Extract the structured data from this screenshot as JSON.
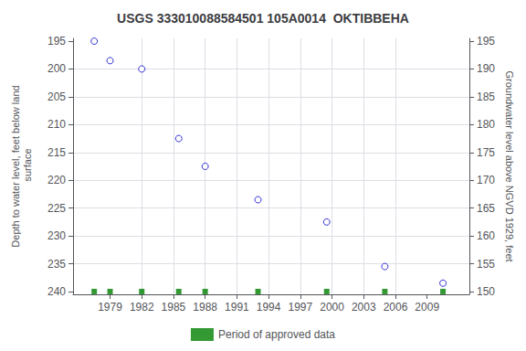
{
  "chart_data": {
    "type": "scatter",
    "title": "USGS 333010088584501 105A0014  OKTIBBEHA",
    "ylabel": "Depth to water level, feet below land\n surface",
    "y2label": "Groundwater level above NGVD 1929, feet",
    "x": [
      1977.5,
      1979.0,
      1982.0,
      1985.5,
      1988.0,
      1993.0,
      1999.5,
      2005.0,
      2010.5
    ],
    "series": [
      {
        "color": "#0000cc",
        "marker": "circle",
        "values": [
          195.0,
          198.5,
          200.0,
          212.5,
          217.5,
          223.5,
          227.5,
          235.5,
          238.5
        ]
      },
      {
        "name": "Period of approved data",
        "color": "#008000",
        "marker": "square",
        "values": [
          240.0,
          240.0,
          240.0,
          240.0,
          240.0,
          240.0,
          240.0,
          240.0,
          240.0
        ]
      }
    ],
    "xlim": [
      1975.5,
      2013.0
    ],
    "xticks": [
      1979,
      1982,
      1985,
      1988,
      1991,
      1994,
      1997,
      2000,
      2003,
      2006,
      2009
    ],
    "ylim": [
      240.5,
      194.5
    ],
    "yticks": [
      195,
      200,
      205,
      210,
      215,
      220,
      225,
      230,
      235,
      240
    ],
    "y2lim": [
      149.5,
      195.5
    ],
    "y2ticks": [
      150,
      155,
      160,
      165,
      170,
      175,
      180,
      185,
      190,
      195
    ],
    "grid": true,
    "legend": "bottom"
  }
}
